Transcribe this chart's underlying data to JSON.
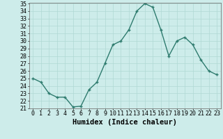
{
  "x": [
    0,
    1,
    2,
    3,
    4,
    5,
    6,
    7,
    8,
    9,
    10,
    11,
    12,
    13,
    14,
    15,
    16,
    17,
    18,
    19,
    20,
    21,
    22,
    23
  ],
  "y": [
    25,
    24.5,
    23,
    22.5,
    22.5,
    21.2,
    21.3,
    23.5,
    24.5,
    27,
    29.5,
    30,
    31.5,
    34,
    35,
    34.5,
    31.5,
    28,
    30,
    30.5,
    29.5,
    27.5,
    26,
    25.5
  ],
  "line_color": "#2e7b6e",
  "marker": "+",
  "bg_color": "#cdecea",
  "grid_color": "#b0d8d4",
  "xlabel": "Humidex (Indice chaleur)",
  "ylim": [
    21,
    35
  ],
  "xlim": [
    -0.5,
    23.5
  ],
  "yticks": [
    21,
    22,
    23,
    24,
    25,
    26,
    27,
    28,
    29,
    30,
    31,
    32,
    33,
    34,
    35
  ],
  "xticks": [
    0,
    1,
    2,
    3,
    4,
    5,
    6,
    7,
    8,
    9,
    10,
    11,
    12,
    13,
    14,
    15,
    16,
    17,
    18,
    19,
    20,
    21,
    22,
    23
  ],
  "tick_fontsize": 6,
  "xlabel_fontsize": 7.5,
  "line_width": 1.0,
  "marker_size": 3.5
}
